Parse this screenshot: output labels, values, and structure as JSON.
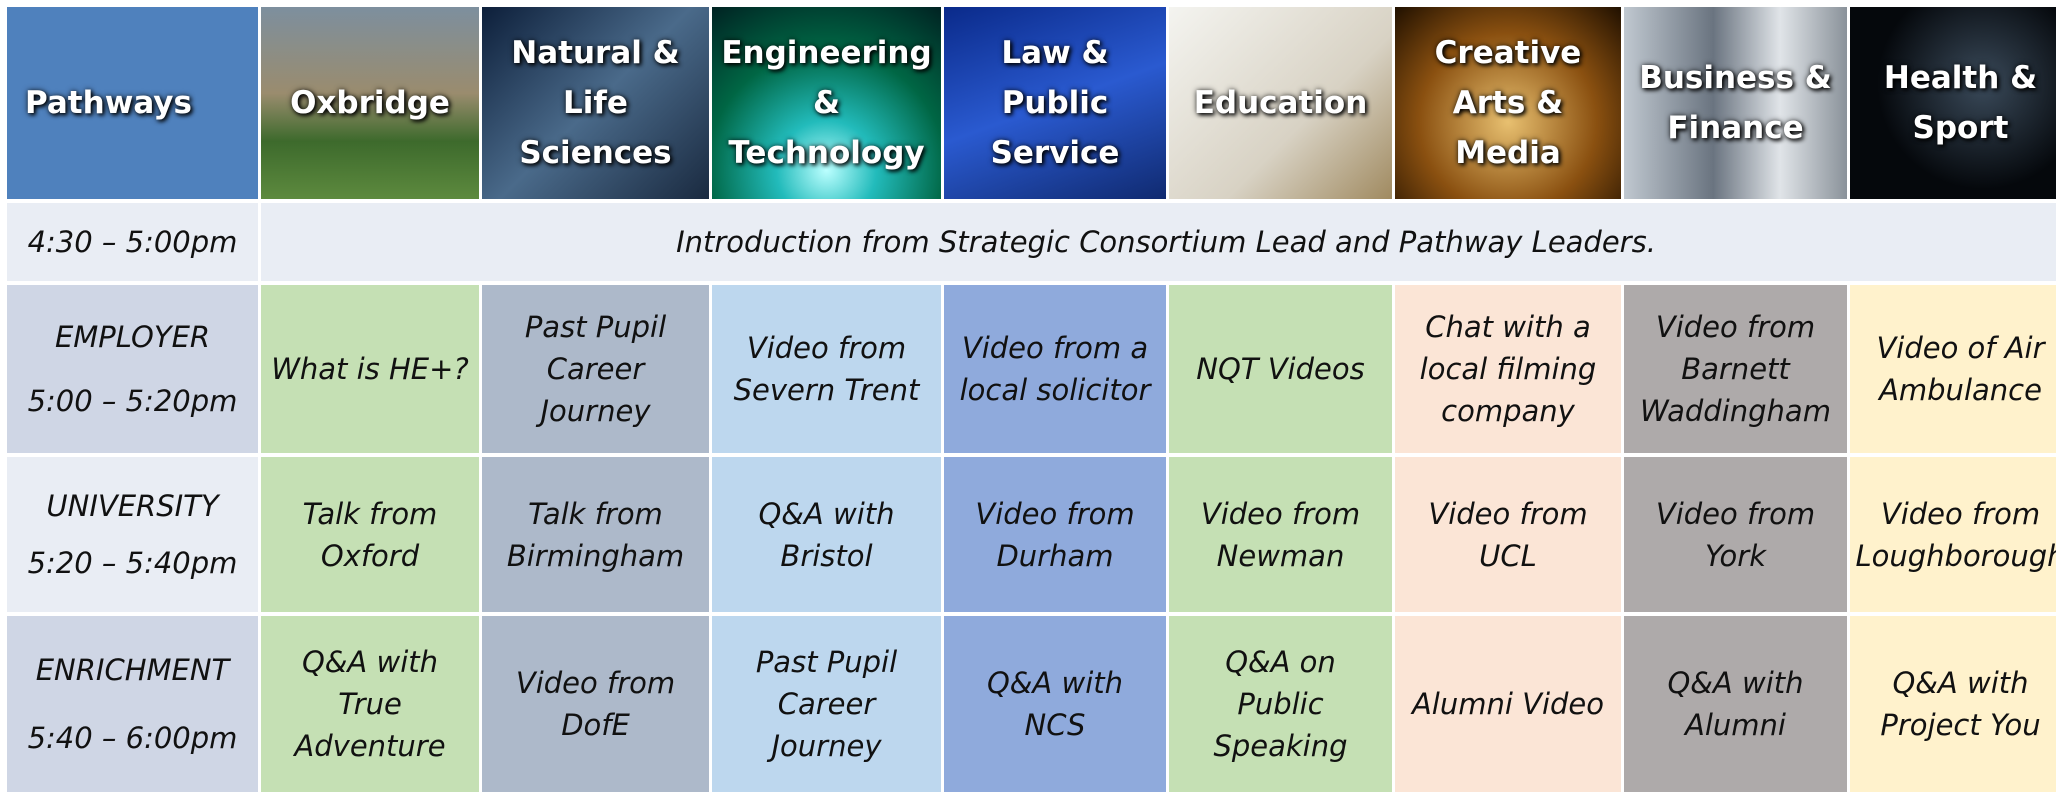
{
  "header": {
    "title": "Pathways",
    "pathways": [
      "Oxbridge",
      "Natural & Life Sciences",
      "Engineering & Technology",
      "Law & Public Service",
      "Education",
      "Creative Arts & Media",
      "Business & Finance",
      "Health & Sport"
    ]
  },
  "intro": {
    "time": "4:30 – 5:00pm",
    "text": "Introduction from Strategic Consortium Lead and Pathway Leaders."
  },
  "rows": [
    {
      "label": "EMPLOYER",
      "time": "5:00 – 5:20pm",
      "cells": [
        "What is HE+?",
        "Past Pupil Career Journey",
        "Video from Severn Trent",
        "Video from a local solicitor",
        "NQT Videos",
        "Chat with a local filming company",
        "Video from Barnett Waddingham",
        "Video of Air Ambulance"
      ]
    },
    {
      "label": "UNIVERSITY",
      "time": "5:20 – 5:40pm",
      "cells": [
        "Talk from Oxford",
        "Talk from Birmingham",
        "Q&A with Bristol",
        "Video from Durham",
        "Video from Newman",
        "Video from UCL",
        "Video from York",
        "Video from Loughborough"
      ]
    },
    {
      "label": "ENRICHMENT",
      "time": "5:40 – 6:00pm",
      "cells": [
        "Q&A with True Adventure",
        "Video from DofE",
        "Past Pupil Career Journey",
        "Q&A with NCS",
        "Q&A on Public Speaking",
        "Alumni Video",
        "Q&A with Alumni",
        "Q&A with Project You"
      ]
    }
  ]
}
